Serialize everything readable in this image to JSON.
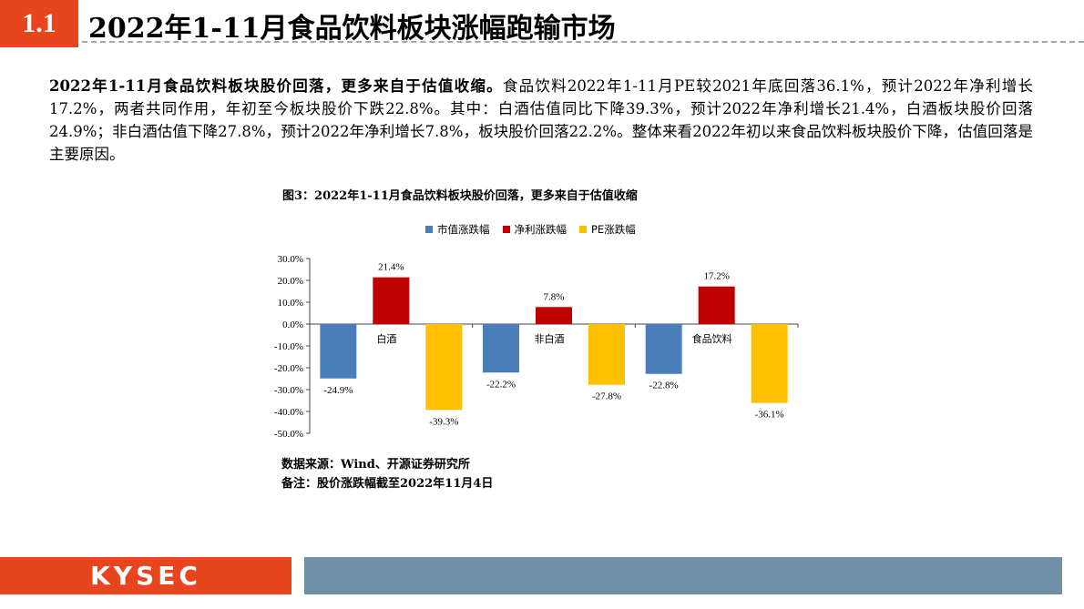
{
  "header": {
    "section_number": "1.1",
    "title": "2022年1-11月食品饮料板块涨幅跑输市场"
  },
  "summary": {
    "lead": "2022年1-11月食品饮料板块股价回落，更多来自于估值收缩。",
    "body": "食品饮料2022年1-11月PE较2021年底回落36.1%，预计2022年净利增长17.2%，两者共同作用，年初至今板块股价下跌22.8%。其中：白酒估值同比下降39.3%，预计2022年净利增长21.4%，白酒板块股价回落24.9%；非白酒估值下降27.8%，预计2022年净利增长7.8%，板块股价回落22.2%。整体来看2022年初以来食品饮料板块股价下降，估值回落是主要原因。"
  },
  "figure": {
    "title": "图3：2022年1-11月食品饮料板块股价回落，更多来自于估值收缩",
    "source": "数据来源：Wind、开源证券研究所",
    "note": "备注：股价涨跌幅截至2022年11月4日"
  },
  "chart_data": {
    "type": "bar",
    "categories": [
      "白酒",
      "非白酒",
      "食品饮料"
    ],
    "series": [
      {
        "name": "市值涨跌幅",
        "color": "#4a7ebb",
        "values": [
          -24.9,
          -22.2,
          -22.8
        ]
      },
      {
        "name": "净利涨跌幅",
        "color": "#c00000",
        "values": [
          21.4,
          7.8,
          17.2
        ]
      },
      {
        "name": "PE涨跌幅",
        "color": "#ffc000",
        "values": [
          -39.3,
          -27.8,
          -36.1
        ]
      }
    ],
    "ylim": [
      -50,
      30
    ],
    "yticks": [
      30,
      20,
      10,
      0,
      -10,
      -20,
      -30,
      -40,
      -50
    ],
    "ytick_labels": [
      "30.0%",
      "20.0%",
      "10.0%",
      "0.0%",
      "-10.0%",
      "-20.0%",
      "-30.0%",
      "-40.0%",
      "-50.0%"
    ],
    "data_labels": [
      [
        "-24.9%",
        "-22.2%",
        "-22.8%"
      ],
      [
        "21.4%",
        "7.8%",
        "17.2%"
      ],
      [
        "-39.3%",
        "-27.8%",
        "-36.1%"
      ]
    ],
    "legend_position": "top",
    "grid": false
  },
  "footer": {
    "logo_text": "KYSEC"
  }
}
